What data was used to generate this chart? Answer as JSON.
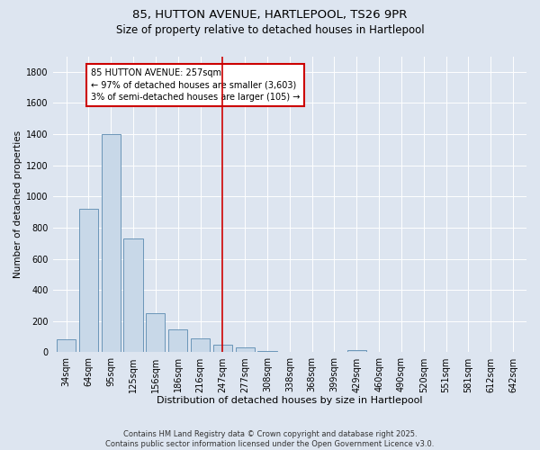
{
  "title1": "85, HUTTON AVENUE, HARTLEPOOL, TS26 9PR",
  "title2": "Size of property relative to detached houses in Hartlepool",
  "xlabel": "Distribution of detached houses by size in Hartlepool",
  "ylabel": "Number of detached properties",
  "categories": [
    "34sqm",
    "64sqm",
    "95sqm",
    "125sqm",
    "156sqm",
    "186sqm",
    "216sqm",
    "247sqm",
    "277sqm",
    "308sqm",
    "338sqm",
    "368sqm",
    "399sqm",
    "429sqm",
    "460sqm",
    "490sqm",
    "520sqm",
    "551sqm",
    "581sqm",
    "612sqm",
    "642sqm"
  ],
  "values": [
    85,
    920,
    1400,
    730,
    250,
    150,
    90,
    50,
    30,
    10,
    0,
    0,
    0,
    15,
    0,
    0,
    0,
    0,
    0,
    0,
    0
  ],
  "bar_color": "#c8d8e8",
  "bar_edge_color": "#5a8ab0",
  "vline_x_index": 7,
  "vline_color": "#cc0000",
  "annotation_text": "85 HUTTON AVENUE: 257sqm\n← 97% of detached houses are smaller (3,603)\n3% of semi-detached houses are larger (105) →",
  "annotation_box_color": "#cc0000",
  "ylim": [
    0,
    1900
  ],
  "yticks": [
    0,
    200,
    400,
    600,
    800,
    1000,
    1200,
    1400,
    1600,
    1800
  ],
  "bg_color": "#dde5f0",
  "footer": "Contains HM Land Registry data © Crown copyright and database right 2025.\nContains public sector information licensed under the Open Government Licence v3.0.",
  "title1_fontsize": 9.5,
  "title2_fontsize": 8.5,
  "xlabel_fontsize": 8,
  "ylabel_fontsize": 7.5,
  "tick_fontsize": 7,
  "annotation_fontsize": 7,
  "footer_fontsize": 6
}
